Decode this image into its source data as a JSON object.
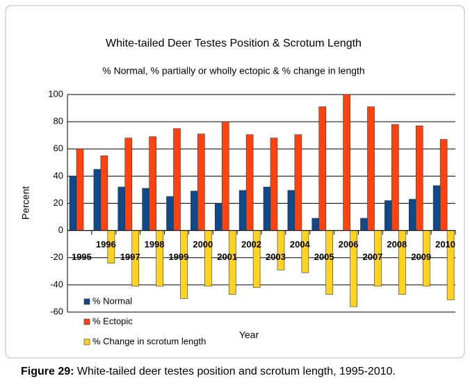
{
  "chart_data": {
    "type": "bar",
    "title": "White-tailed Deer Testes Position & Scrotum Length",
    "subtitle": "% Normal, % partially or wholly ectopic & % change in length",
    "x_label": "Year",
    "y_label": "Percent",
    "categories": [
      "1995",
      "1996",
      "1997",
      "1998",
      "1999",
      "2000",
      "2001",
      "2002",
      "2003",
      "2004",
      "2005",
      "2006",
      "2007",
      "2008",
      "2009",
      "2010"
    ],
    "series": [
      {
        "name": "% Normal",
        "color": "#0d4a8c",
        "values": [
          40,
          45,
          32,
          31,
          25,
          29,
          20,
          29.5,
          32,
          29.5,
          9,
          0,
          9,
          22,
          23,
          33
        ]
      },
      {
        "name": "% Ectopic",
        "color": "#ff420e",
        "values": [
          60,
          55,
          68,
          69,
          75,
          71,
          80,
          70.5,
          68,
          70.5,
          91,
          100,
          91,
          78,
          77,
          67
        ]
      },
      {
        "name": "% Change in scrotum length",
        "color": "#ffd320",
        "values": [
          null,
          -24,
          -41,
          -41,
          -50,
          -41,
          -47,
          -42,
          -29,
          -31,
          -47,
          -56,
          -41,
          -47,
          -41,
          -51
        ]
      }
    ],
    "ylim": [
      -60,
      100
    ],
    "yticks": [
      -60,
      -40,
      -20,
      0,
      20,
      40,
      60,
      80,
      100
    ],
    "grid": true,
    "legend": "bottom left"
  },
  "caption": {
    "label": "Figure 29:",
    "text": "White-tailed deer testes position and scrotum length, 1995-2010."
  }
}
